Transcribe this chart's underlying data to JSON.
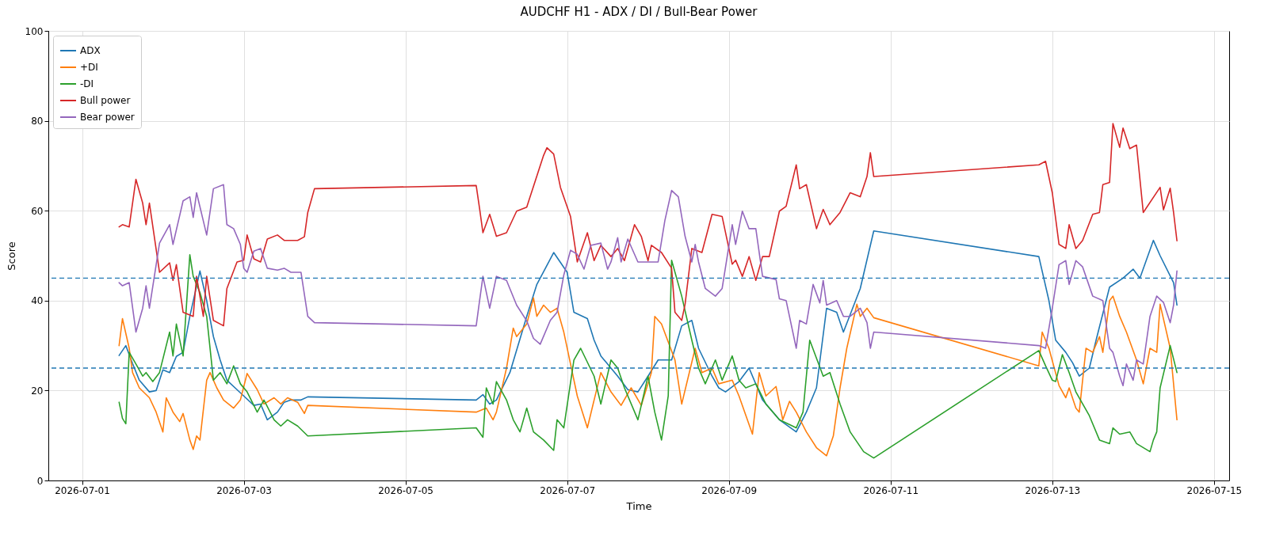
{
  "chart_data": {
    "type": "line",
    "title": "AUDCHF H1 - ADX / DI / Bull-Bear Power",
    "xlabel": "Time",
    "ylabel": "Score",
    "xlim": [
      "2026-06-30T14:00",
      "2026-07-15T04:30"
    ],
    "xticks": [
      "2026-07-01",
      "2026-07-03",
      "2026-07-05",
      "2026-07-07",
      "2026-07-09",
      "2026-07-11",
      "2026-07-13",
      "2026-07-15"
    ],
    "ylim": [
      0,
      100
    ],
    "yticks": [
      0,
      20,
      40,
      60,
      80,
      100
    ],
    "grid": true,
    "legend": "top left",
    "ref_lines": [
      {
        "axis": "y",
        "value": 45,
        "color": "#1f77b4",
        "line_style": "dashed"
      },
      {
        "axis": "y",
        "value": 25,
        "color": "#1f77b4",
        "line_style": "dashed"
      }
    ],
    "series": [
      {
        "name": "ADX",
        "color": "#1f77b4",
        "x": [
          "2026-07-01T11:00",
          "2026-07-01T13:00",
          "2026-07-01T15:00",
          "2026-07-01T17:00",
          "2026-07-01T20:00",
          "2026-07-01T22:00",
          "2026-07-02T00:00",
          "2026-07-02T02:00",
          "2026-07-02T04:00",
          "2026-07-02T06:00",
          "2026-07-02T08:00",
          "2026-07-02T11:00",
          "2026-07-02T13:00",
          "2026-07-02T15:00",
          "2026-07-02T17:00",
          "2026-07-02T19:00",
          "2026-07-02T22:00",
          "2026-07-03T00:00",
          "2026-07-03T03:00",
          "2026-07-03T05:00",
          "2026-07-03T07:00",
          "2026-07-03T10:00",
          "2026-07-03T12:00",
          "2026-07-03T14:00",
          "2026-07-03T17:00",
          "2026-07-03T19:00",
          "2026-07-05T21:00",
          "2026-07-05T23:00",
          "2026-07-06T01:00",
          "2026-07-06T03:00",
          "2026-07-06T07:00",
          "2026-07-06T12:00",
          "2026-07-06T15:00",
          "2026-07-06T20:00",
          "2026-07-07T00:00",
          "2026-07-07T02:00",
          "2026-07-07T06:00",
          "2026-07-07T08:00",
          "2026-07-07T10:00",
          "2026-07-07T13:00",
          "2026-07-07T15:00",
          "2026-07-07T18:00",
          "2026-07-07T21:00",
          "2026-07-08T00:00",
          "2026-07-08T03:00",
          "2026-07-08T07:00",
          "2026-07-08T10:00",
          "2026-07-08T13:00",
          "2026-07-08T15:00",
          "2026-07-08T19:00",
          "2026-07-08T21:00",
          "2026-07-08T23:00",
          "2026-07-09T03:00",
          "2026-07-09T06:00",
          "2026-07-09T10:00",
          "2026-07-09T15:00",
          "2026-07-09T20:00",
          "2026-07-09T23:00",
          "2026-07-10T02:00",
          "2026-07-10T05:00",
          "2026-07-10T08:00",
          "2026-07-10T10:00",
          "2026-07-10T15:00",
          "2026-07-10T19:00",
          "2026-07-12T20:00",
          "2026-07-12T23:00",
          "2026-07-13T01:00",
          "2026-07-13T04:00",
          "2026-07-13T06:00",
          "2026-07-13T08:00",
          "2026-07-13T11:00",
          "2026-07-13T13:00",
          "2026-07-13T17:00",
          "2026-07-13T21:00",
          "2026-07-14T00:00",
          "2026-07-14T02:00",
          "2026-07-14T06:00",
          "2026-07-14T08:00",
          "2026-07-14T12:00",
          "2026-07-14T13:00"
        ],
        "values": [
          27.8,
          30,
          26,
          22.3,
          19.7,
          20,
          24.6,
          24,
          27.6,
          28.5,
          36.5,
          46.6,
          40,
          32,
          26.8,
          22.3,
          20.2,
          18.8,
          16.7,
          17,
          13.5,
          15.2,
          17.4,
          17.9,
          17.9,
          18.6,
          17.9,
          19.1,
          17,
          17.9,
          24,
          36.5,
          43.6,
          50.7,
          46.3,
          37.4,
          36,
          31.2,
          27.7,
          25,
          23.2,
          20.2,
          19.7,
          23.2,
          26.8,
          26.8,
          34.4,
          35.6,
          29.4,
          23.2,
          20.6,
          19.7,
          22,
          25,
          17.9,
          13.5,
          10.8,
          15.2,
          20.6,
          38.3,
          37.4,
          33,
          42.7,
          55.5,
          49.8,
          40,
          31.2,
          28.5,
          26.2,
          23.2,
          25,
          31.2,
          43,
          45,
          47,
          45,
          53.4,
          50,
          44,
          39
        ]
      },
      {
        "name": "+DI",
        "color": "#ff7f0e",
        "x": [
          "2026-07-01T11:00",
          "2026-07-01T12:00",
          "2026-07-01T14:00",
          "2026-07-01T15:00",
          "2026-07-01T17:00",
          "2026-07-01T20:00",
          "2026-07-01T22:00",
          "2026-07-02T00:00",
          "2026-07-02T01:00",
          "2026-07-02T03:00",
          "2026-07-02T05:00",
          "2026-07-02T06:00",
          "2026-07-02T08:00",
          "2026-07-02T09:00",
          "2026-07-02T10:00",
          "2026-07-02T11:00",
          "2026-07-02T13:00",
          "2026-07-02T14:00",
          "2026-07-02T16:00",
          "2026-07-02T18:00",
          "2026-07-02T21:00",
          "2026-07-02T23:00",
          "2026-07-03T01:00",
          "2026-07-03T04:00",
          "2026-07-03T06:00",
          "2026-07-03T09:00",
          "2026-07-03T11:00",
          "2026-07-03T13:00",
          "2026-07-03T16:00",
          "2026-07-03T18:00",
          "2026-07-03T19:00",
          "2026-07-05T21:00",
          "2026-07-06T00:00",
          "2026-07-06T02:00",
          "2026-07-06T03:00",
          "2026-07-06T06:00",
          "2026-07-06T08:00",
          "2026-07-06T09:00",
          "2026-07-06T12:00",
          "2026-07-06T14:00",
          "2026-07-06T15:00",
          "2026-07-06T17:00",
          "2026-07-06T19:00",
          "2026-07-06T21:00",
          "2026-07-06T23:00",
          "2026-07-07T01:00",
          "2026-07-07T03:00",
          "2026-07-07T06:00",
          "2026-07-07T08:00",
          "2026-07-07T10:00",
          "2026-07-07T13:00",
          "2026-07-07T16:00",
          "2026-07-07T19:00",
          "2026-07-07T22:00",
          "2026-07-08T01:00",
          "2026-07-08T02:00",
          "2026-07-08T04:00",
          "2026-07-08T08:00",
          "2026-07-08T10:00",
          "2026-07-08T14:00",
          "2026-07-08T16:00",
          "2026-07-08T19:00",
          "2026-07-08T21:00",
          "2026-07-09T01:00",
          "2026-07-09T03:00",
          "2026-07-09T07:00",
          "2026-07-09T09:00",
          "2026-07-09T11:00",
          "2026-07-09T14:00",
          "2026-07-09T16:00",
          "2026-07-09T18:00",
          "2026-07-09T20:00",
          "2026-07-09T23:00",
          "2026-07-10T02:00",
          "2026-07-10T05:00",
          "2026-07-10T07:00",
          "2026-07-10T09:00",
          "2026-07-10T11:00",
          "2026-07-10T14:00",
          "2026-07-10T15:00",
          "2026-07-10T17:00",
          "2026-07-10T19:00",
          "2026-07-12T20:00",
          "2026-07-12T21:00",
          "2026-07-12T23:00",
          "2026-07-13T02:00",
          "2026-07-13T04:00",
          "2026-07-13T05:00",
          "2026-07-13T07:00",
          "2026-07-13T08:00",
          "2026-07-13T10:00",
          "2026-07-13T12:00",
          "2026-07-13T14:00",
          "2026-07-13T15:00",
          "2026-07-13T17:00",
          "2026-07-13T18:00",
          "2026-07-13T20:00",
          "2026-07-13T22:00",
          "2026-07-14T01:00",
          "2026-07-14T03:00",
          "2026-07-14T05:00",
          "2026-07-14T07:00",
          "2026-07-14T08:00",
          "2026-07-14T11:00",
          "2026-07-14T13:00"
        ],
        "values": [
          30,
          36,
          29.4,
          24,
          20.6,
          18.4,
          15.2,
          10.8,
          18.4,
          15.2,
          13.1,
          14.9,
          9,
          6.9,
          9.9,
          9,
          22.3,
          24,
          20.6,
          17.9,
          16.1,
          17.9,
          23.8,
          20.2,
          17,
          18.4,
          17,
          18.4,
          17.4,
          14.9,
          16.7,
          15.2,
          16.1,
          13.5,
          15.2,
          25,
          33.9,
          32,
          34.8,
          40.6,
          36.5,
          39,
          37.4,
          38.3,
          33,
          25.9,
          18.8,
          11.7,
          17.9,
          24,
          19.7,
          16.7,
          20.6,
          16.7,
          24,
          36.5,
          34.8,
          26.8,
          17,
          29.4,
          24,
          25,
          21.5,
          22.3,
          18.8,
          10.3,
          24,
          18.8,
          20.9,
          13.5,
          17.6,
          15.2,
          10.8,
          7.3,
          5.5,
          9.9,
          20.6,
          29.4,
          39.2,
          36.5,
          38.3,
          36.2,
          25.5,
          33,
          29.4,
          21.1,
          18.4,
          20.6,
          16.1,
          15.2,
          29.4,
          28.5,
          32,
          28.5,
          40,
          41,
          36.5,
          33,
          26.8,
          21.5,
          29.4,
          28.5,
          39.2,
          29.4,
          13.5
        ]
      },
      {
        "name": "-DI",
        "color": "#2ca02c",
        "x": [
          "2026-07-01T11:00",
          "2026-07-01T12:00",
          "2026-07-01T13:00",
          "2026-07-01T14:00",
          "2026-07-01T16:00",
          "2026-07-01T18:00",
          "2026-07-01T19:00",
          "2026-07-01T21:00",
          "2026-07-01T23:00",
          "2026-07-02T02:00",
          "2026-07-02T03:00",
          "2026-07-02T04:00",
          "2026-07-02T06:00",
          "2026-07-02T08:00",
          "2026-07-02T09:00",
          "2026-07-02T11:00",
          "2026-07-02T13:00",
          "2026-07-02T15:00",
          "2026-07-02T17:00",
          "2026-07-02T19:00",
          "2026-07-02T21:00",
          "2026-07-02T23:00",
          "2026-07-03T01:00",
          "2026-07-03T04:00",
          "2026-07-03T06:00",
          "2026-07-03T09:00",
          "2026-07-03T11:00",
          "2026-07-03T13:00",
          "2026-07-03T16:00",
          "2026-07-03T19:00",
          "2026-07-05T21:00",
          "2026-07-05T23:00",
          "2026-07-06T00:00",
          "2026-07-06T02:00",
          "2026-07-06T03:00",
          "2026-07-06T06:00",
          "2026-07-06T08:00",
          "2026-07-06T10:00",
          "2026-07-06T12:00",
          "2026-07-06T14:00",
          "2026-07-06T17:00",
          "2026-07-06T20:00",
          "2026-07-06T21:00",
          "2026-07-06T23:00",
          "2026-07-07T02:00",
          "2026-07-07T04:00",
          "2026-07-07T08:00",
          "2026-07-07T10:00",
          "2026-07-07T13:00",
          "2026-07-07T15:00",
          "2026-07-07T17:00",
          "2026-07-07T21:00",
          "2026-07-08T00:00",
          "2026-07-08T02:00",
          "2026-07-08T04:00",
          "2026-07-08T06:00",
          "2026-07-08T07:00",
          "2026-07-08T10:00",
          "2026-07-08T13:00",
          "2026-07-08T15:00",
          "2026-07-08T17:00",
          "2026-07-08T20:00",
          "2026-07-08T22:00",
          "2026-07-09T01:00",
          "2026-07-09T03:00",
          "2026-07-09T05:00",
          "2026-07-09T08:00",
          "2026-07-09T11:00",
          "2026-07-09T15:00",
          "2026-07-09T20:00",
          "2026-07-09T22:00",
          "2026-07-10T00:00",
          "2026-07-10T04:00",
          "2026-07-10T06:00",
          "2026-07-10T09:00",
          "2026-07-10T12:00",
          "2026-07-10T16:00",
          "2026-07-10T19:00",
          "2026-07-12T20:00",
          "2026-07-12T22:00",
          "2026-07-13T00:00",
          "2026-07-13T01:00",
          "2026-07-13T03:00",
          "2026-07-13T05:00",
          "2026-07-13T07:00",
          "2026-07-13T11:00",
          "2026-07-13T14:00",
          "2026-07-13T17:00",
          "2026-07-13T18:00",
          "2026-07-13T20:00",
          "2026-07-13T23:00",
          "2026-07-14T01:00",
          "2026-07-14T05:00",
          "2026-07-14T06:00",
          "2026-07-14T07:00",
          "2026-07-14T08:00",
          "2026-07-14T11:00",
          "2026-07-14T13:00"
        ],
        "values": [
          17.4,
          13.8,
          12.6,
          28.5,
          25.9,
          23.2,
          24,
          22,
          24,
          33,
          27.7,
          34.8,
          27.7,
          50.2,
          45.4,
          41.8,
          36.5,
          22.3,
          24,
          21.5,
          25.5,
          21.5,
          19.7,
          15.2,
          17.9,
          13.5,
          12.1,
          13.5,
          12.1,
          9.9,
          11.7,
          9.6,
          20.6,
          17,
          22,
          17.9,
          13.5,
          10.8,
          16.1,
          10.8,
          9,
          6.7,
          13.5,
          11.7,
          26.8,
          29.4,
          23.2,
          17,
          26.8,
          25,
          20.6,
          13.5,
          23.2,
          15.2,
          9,
          18.8,
          49,
          41,
          31.2,
          25,
          21.5,
          26.8,
          22.3,
          27.7,
          22.3,
          20.6,
          21.5,
          17,
          13.5,
          11.7,
          15.2,
          31.2,
          23.2,
          24,
          17,
          10.8,
          6.4,
          5,
          28.9,
          25.5,
          22.3,
          22,
          28,
          24,
          19.7,
          14.4,
          9,
          8.2,
          11.7,
          10.3,
          10.8,
          8.2,
          6.4,
          9,
          10.8,
          20.6,
          30,
          24
        ]
      },
      {
        "name": "Bull power",
        "color": "#d62728",
        "x": [
          "2026-07-01T11:00",
          "2026-07-01T12:00",
          "2026-07-01T14:00",
          "2026-07-01T16:00",
          "2026-07-01T18:00",
          "2026-07-01T19:00",
          "2026-07-01T20:00",
          "2026-07-01T23:00",
          "2026-07-02T02:00",
          "2026-07-02T03:00",
          "2026-07-02T04:00",
          "2026-07-02T06:00",
          "2026-07-02T09:00",
          "2026-07-02T10:00",
          "2026-07-02T12:00",
          "2026-07-02T13:00",
          "2026-07-02T15:00",
          "2026-07-02T18:00",
          "2026-07-02T19:00",
          "2026-07-02T22:00",
          "2026-07-03T00:00",
          "2026-07-03T01:00",
          "2026-07-03T03:00",
          "2026-07-03T05:00",
          "2026-07-03T07:00",
          "2026-07-03T10:00",
          "2026-07-03T12:00",
          "2026-07-03T16:00",
          "2026-07-03T18:00",
          "2026-07-03T19:00",
          "2026-07-03T21:00",
          "2026-07-05T21:00",
          "2026-07-05T22:00",
          "2026-07-05T23:00",
          "2026-07-06T01:00",
          "2026-07-06T03:00",
          "2026-07-06T06:00",
          "2026-07-06T09:00",
          "2026-07-06T12:00",
          "2026-07-06T14:00",
          "2026-07-06T17:00",
          "2026-07-06T18:00",
          "2026-07-06T20:00",
          "2026-07-06T22:00",
          "2026-07-07T01:00",
          "2026-07-07T03:00",
          "2026-07-07T06:00",
          "2026-07-07T08:00",
          "2026-07-07T10:00",
          "2026-07-07T13:00",
          "2026-07-07T15:00",
          "2026-07-07T17:00",
          "2026-07-07T20:00",
          "2026-07-07T22:00",
          "2026-07-08T00:00",
          "2026-07-08T01:00",
          "2026-07-08T04:00",
          "2026-07-08T07:00",
          "2026-07-08T08:00",
          "2026-07-08T10:00",
          "2026-07-08T11:00",
          "2026-07-08T13:00",
          "2026-07-08T16:00",
          "2026-07-08T19:00",
          "2026-07-08T22:00",
          "2026-07-09T01:00",
          "2026-07-09T02:00",
          "2026-07-09T04:00",
          "2026-07-09T06:00",
          "2026-07-09T08:00",
          "2026-07-09T10:00",
          "2026-07-09T12:00",
          "2026-07-09T15:00",
          "2026-07-09T17:00",
          "2026-07-09T20:00",
          "2026-07-09T21:00",
          "2026-07-09T23:00",
          "2026-07-10T02:00",
          "2026-07-10T04:00",
          "2026-07-10T06:00",
          "2026-07-10T09:00",
          "2026-07-10T12:00",
          "2026-07-10T15:00",
          "2026-07-10T17:00",
          "2026-07-10T18:00",
          "2026-07-10T19:00",
          "2026-07-12T20:00",
          "2026-07-12T22:00",
          "2026-07-13T00:00",
          "2026-07-13T02:00",
          "2026-07-13T04:00",
          "2026-07-13T05:00",
          "2026-07-13T07:00",
          "2026-07-13T09:00",
          "2026-07-13T12:00",
          "2026-07-13T14:00",
          "2026-07-13T15:00",
          "2026-07-13T17:00",
          "2026-07-13T18:00",
          "2026-07-13T20:00",
          "2026-07-13T21:00",
          "2026-07-13T23:00",
          "2026-07-14T01:00",
          "2026-07-14T03:00",
          "2026-07-14T08:00",
          "2026-07-14T09:00",
          "2026-07-14T11:00",
          "2026-07-14T12:00",
          "2026-07-14T13:00"
        ],
        "values": [
          56.4,
          56.9,
          56.4,
          67,
          61.7,
          56.9,
          61.7,
          46.3,
          48.4,
          44.5,
          48,
          37.4,
          36.5,
          45.4,
          36.5,
          45.4,
          35.6,
          34.4,
          42.7,
          48.6,
          49,
          54.6,
          49.3,
          48.6,
          53.7,
          54.6,
          53.4,
          53.4,
          54.2,
          59.6,
          64.9,
          65.6,
          60.5,
          55.1,
          59.2,
          54.3,
          55.1,
          59.9,
          60.8,
          65.4,
          72.3,
          74,
          72.6,
          65.2,
          58.7,
          48.6,
          55.1,
          48.9,
          52.3,
          49.8,
          51.6,
          48.9,
          56.9,
          54.3,
          48.9,
          52.3,
          50.7,
          47.2,
          37.4,
          35.6,
          39.2,
          51.6,
          50.7,
          59.2,
          58.7,
          48.1,
          49,
          45.4,
          49.8,
          44.5,
          49.8,
          49.8,
          59.9,
          61,
          70.2,
          64.9,
          65.8,
          56,
          60.3,
          56.9,
          59.6,
          64,
          63.1,
          67.6,
          72.9,
          67.6,
          70.2,
          71,
          64,
          52.5,
          51.6,
          56.9,
          51.6,
          53.4,
          59.2,
          59.6,
          65.8,
          66.3,
          79.4,
          74.1,
          78.4,
          73.8,
          74.6,
          59.6,
          65.2,
          60.2,
          65,
          59.6,
          53.3
        ]
      },
      {
        "name": "Bear power",
        "color": "#9467bd",
        "x": [
          "2026-07-01T11:00",
          "2026-07-01T12:00",
          "2026-07-01T14:00",
          "2026-07-01T16:00",
          "2026-07-01T18:00",
          "2026-07-01T19:00",
          "2026-07-01T20:00",
          "2026-07-01T23:00",
          "2026-07-02T02:00",
          "2026-07-02T03:00",
          "2026-07-02T06:00",
          "2026-07-02T08:00",
          "2026-07-02T09:00",
          "2026-07-02T10:00",
          "2026-07-02T13:00",
          "2026-07-02T15:00",
          "2026-07-02T18:00",
          "2026-07-02T19:00",
          "2026-07-02T21:00",
          "2026-07-02T23:00",
          "2026-07-03T00:00",
          "2026-07-03T01:00",
          "2026-07-03T03:00",
          "2026-07-03T05:00",
          "2026-07-03T07:00",
          "2026-07-03T10:00",
          "2026-07-03T12:00",
          "2026-07-03T14:00",
          "2026-07-03T17:00",
          "2026-07-03T19:00",
          "2026-07-03T21:00",
          "2026-07-05T21:00",
          "2026-07-05T22:00",
          "2026-07-05T23:00",
          "2026-07-06T01:00",
          "2026-07-06T03:00",
          "2026-07-06T06:00",
          "2026-07-06T09:00",
          "2026-07-06T12:00",
          "2026-07-06T14:00",
          "2026-07-06T16:00",
          "2026-07-06T19:00",
          "2026-07-06T21:00",
          "2026-07-06T23:00",
          "2026-07-07T01:00",
          "2026-07-07T03:00",
          "2026-07-07T05:00",
          "2026-07-07T07:00",
          "2026-07-07T10:00",
          "2026-07-07T12:00",
          "2026-07-07T13:00",
          "2026-07-07T15:00",
          "2026-07-07T16:00",
          "2026-07-07T18:00",
          "2026-07-07T21:00",
          "2026-07-08T03:00",
          "2026-07-08T05:00",
          "2026-07-08T07:00",
          "2026-07-08T09:00",
          "2026-07-08T11:00",
          "2026-07-08T13:00",
          "2026-07-08T14:00",
          "2026-07-08T15:00",
          "2026-07-08T17:00",
          "2026-07-08T20:00",
          "2026-07-08T22:00",
          "2026-07-09T01:00",
          "2026-07-09T02:00",
          "2026-07-09T04:00",
          "2026-07-09T06:00",
          "2026-07-09T08:00",
          "2026-07-09T10:00",
          "2026-07-09T14:00",
          "2026-07-09T15:00",
          "2026-07-09T17:00",
          "2026-07-09T20:00",
          "2026-07-09T21:00",
          "2026-07-09T23:00",
          "2026-07-10T01:00",
          "2026-07-10T03:00",
          "2026-07-10T04:00",
          "2026-07-10T05:00",
          "2026-07-10T08:00",
          "2026-07-10T10:00",
          "2026-07-10T12:00",
          "2026-07-10T15:00",
          "2026-07-10T17:00",
          "2026-07-10T18:00",
          "2026-07-10T19:00",
          "2026-07-12T20:00",
          "2026-07-12T22:00",
          "2026-07-13T00:00",
          "2026-07-13T02:00",
          "2026-07-13T04:00",
          "2026-07-13T05:00",
          "2026-07-13T07:00",
          "2026-07-13T09:00",
          "2026-07-13T12:00",
          "2026-07-13T15:00",
          "2026-07-13T17:00",
          "2026-07-13T18:00",
          "2026-07-13T20:00",
          "2026-07-13T21:00",
          "2026-07-13T22:00",
          "2026-07-14T00:00",
          "2026-07-14T01:00",
          "2026-07-14T03:00",
          "2026-07-14T05:00",
          "2026-07-14T07:00",
          "2026-07-14T09:00",
          "2026-07-14T11:00",
          "2026-07-14T12:00",
          "2026-07-14T13:00"
        ],
        "values": [
          44,
          43.3,
          44,
          33,
          38.3,
          43.3,
          38.3,
          52.8,
          56.9,
          52.5,
          62.2,
          63.1,
          58.5,
          64,
          54.6,
          64.9,
          65.8,
          56.9,
          56,
          52.5,
          47.2,
          46.3,
          51,
          51.6,
          47.2,
          46.8,
          47.2,
          46.3,
          46.3,
          36.5,
          35.1,
          34.4,
          40,
          45.4,
          38.3,
          45.4,
          44.5,
          39,
          35.5,
          31.6,
          30.3,
          35.6,
          37.4,
          45.7,
          51.2,
          50.3,
          47,
          52.3,
          52.8,
          47,
          48.6,
          54,
          48.6,
          53.7,
          48.6,
          48.6,
          57.8,
          64.5,
          63.1,
          54.3,
          48.6,
          52.5,
          48.6,
          42.7,
          41,
          42.7,
          56.9,
          52.5,
          59.9,
          56,
          56,
          45.4,
          44.7,
          40.4,
          40,
          29.4,
          35.6,
          34.8,
          43.6,
          39.5,
          44.5,
          39,
          40,
          36.5,
          36.5,
          38.3,
          35.1,
          29.4,
          33,
          30,
          29.4,
          38.3,
          48,
          48.9,
          43.6,
          48.9,
          47.5,
          41,
          40,
          29.4,
          28.5,
          23.2,
          21.1,
          25.9,
          22.3,
          26.8,
          25.9,
          36.5,
          41,
          39.6,
          35.1,
          39,
          46.6
        ]
      }
    ]
  }
}
